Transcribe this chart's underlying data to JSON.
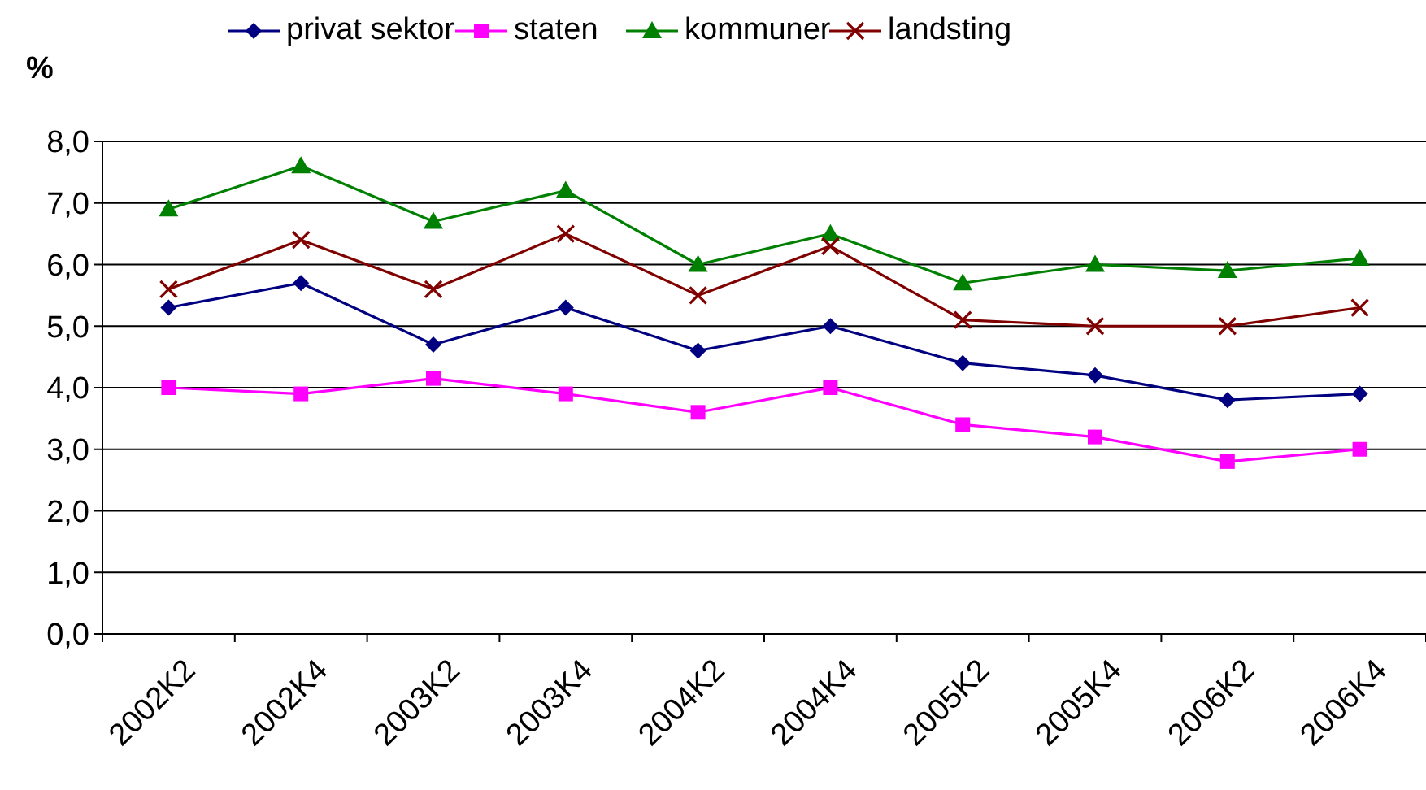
{
  "chart_data": {
    "type": "line",
    "ylabel": "%",
    "categories": [
      "2002K2",
      "2002K4",
      "2003K2",
      "2003K4",
      "2004K2",
      "2004K4",
      "2005K2",
      "2005K4",
      "2006K2",
      "2006K4"
    ],
    "series": [
      {
        "name": "privat sektor",
        "color": "#000080",
        "marker": "diamond",
        "values": [
          5.3,
          5.7,
          4.7,
          5.3,
          4.6,
          5.0,
          4.4,
          4.2,
          3.8,
          3.9
        ]
      },
      {
        "name": "staten",
        "color": "#ff00ff",
        "marker": "square",
        "values": [
          4.0,
          3.9,
          4.15,
          3.9,
          3.6,
          4.0,
          3.4,
          3.2,
          2.8,
          3.0
        ]
      },
      {
        "name": "kommuner",
        "color": "#008000",
        "marker": "triangle",
        "values": [
          6.9,
          7.6,
          6.7,
          7.2,
          6.0,
          6.5,
          5.7,
          6.0,
          5.9,
          6.1
        ]
      },
      {
        "name": "landsting",
        "color": "#800000",
        "marker": "cross",
        "values": [
          5.6,
          6.4,
          5.6,
          6.5,
          5.5,
          6.3,
          5.1,
          5.0,
          5.0,
          5.3
        ]
      }
    ],
    "ylim": [
      0,
      8
    ],
    "yticks": [
      {
        "value": 0,
        "label": "0,0"
      },
      {
        "value": 1,
        "label": "1,0"
      },
      {
        "value": 2,
        "label": "2,0"
      },
      {
        "value": 3,
        "label": "3,0"
      },
      {
        "value": 4,
        "label": "4,0"
      },
      {
        "value": 5,
        "label": "5,0"
      },
      {
        "value": 6,
        "label": "6,0"
      },
      {
        "value": 7,
        "label": "7,0"
      },
      {
        "value": 8,
        "label": "8,0"
      }
    ],
    "grid": "y",
    "legend": "top",
    "line_style": "solid"
  }
}
